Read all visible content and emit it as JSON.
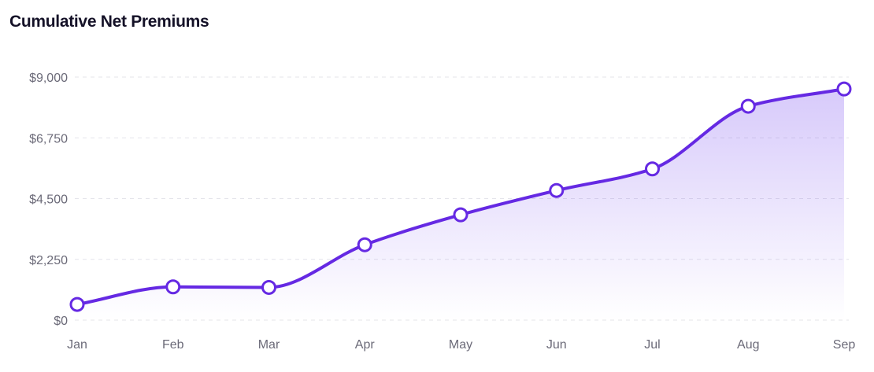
{
  "chart_data": {
    "type": "area",
    "title": "Cumulative Net Premiums",
    "xlabel": "",
    "ylabel": "",
    "categories": [
      "Jan",
      "Feb",
      "Mar",
      "Apr",
      "May",
      "Jun",
      "Jul",
      "Aug",
      "Sep"
    ],
    "series": [
      {
        "values": [
          580,
          1230,
          1210,
          2790,
          3900,
          4800,
          5600,
          7920,
          8560
        ]
      }
    ],
    "y_ticks": [
      0,
      2250,
      4500,
      6750,
      9000
    ],
    "y_tick_labels": [
      "$0",
      "$2,250",
      "$4,500",
      "$6,750",
      "$9,000"
    ],
    "ylim": [
      0,
      9000
    ],
    "grid": true,
    "legend": "none",
    "line_color": "#6529e3",
    "fill_color": "#7a4ef0"
  }
}
